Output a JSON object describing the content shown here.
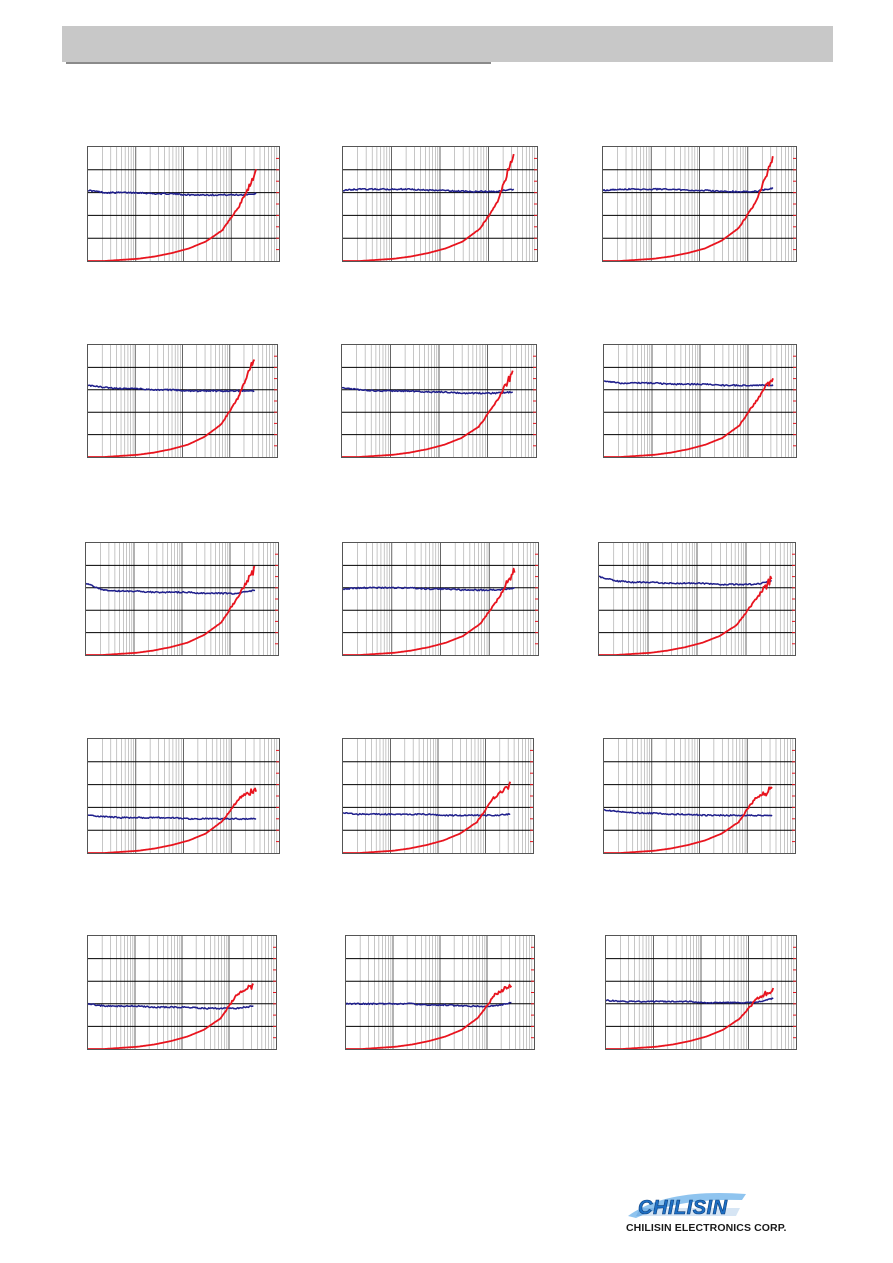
{
  "company": {
    "logo_text": "CHILISIN",
    "caption": "CHILISIN ELECTRONICS CORP."
  },
  "colors": {
    "header": "#c8c8c8",
    "series_a": "#1f1f8c",
    "series_b": "#e8141e",
    "grid": "#000000",
    "logo_blue": "#1e6fc4"
  },
  "chart_data": [
    {
      "type": "line",
      "xscale": "log",
      "grid": "log-vertical, 4 horizontal",
      "series": [
        {
          "y": [
            0.62,
            0.6,
            0.6,
            0.6,
            0.59,
            0.59,
            0.58,
            0.58,
            0.58,
            0.58,
            0.59
          ]
        },
        {
          "y": [
            0.0,
            0.0,
            0.01,
            0.02,
            0.04,
            0.07,
            0.11,
            0.17,
            0.27,
            0.48,
            0.78
          ]
        }
      ]
    },
    {
      "type": "line",
      "xscale": "log",
      "grid": "log-vertical, 4 horizontal",
      "series": [
        {
          "y": [
            0.62,
            0.63,
            0.63,
            0.63,
            0.63,
            0.62,
            0.62,
            0.61,
            0.61,
            0.61,
            0.63
          ]
        },
        {
          "y": [
            0.0,
            0.0,
            0.01,
            0.02,
            0.04,
            0.07,
            0.11,
            0.17,
            0.28,
            0.5,
            0.94
          ]
        }
      ]
    },
    {
      "type": "line",
      "xscale": "log",
      "grid": "log-vertical, 4 horizontal",
      "series": [
        {
          "y": [
            0.62,
            0.63,
            0.63,
            0.63,
            0.63,
            0.62,
            0.62,
            0.61,
            0.61,
            0.61,
            0.64
          ]
        },
        {
          "y": [
            0.0,
            0.0,
            0.01,
            0.02,
            0.04,
            0.07,
            0.11,
            0.18,
            0.29,
            0.52,
            0.9
          ]
        }
      ]
    },
    {
      "type": "line",
      "xscale": "log",
      "grid": "log-vertical, 4 horizontal",
      "series": [
        {
          "y": [
            0.64,
            0.62,
            0.61,
            0.61,
            0.6,
            0.6,
            0.59,
            0.59,
            0.59,
            0.59,
            0.59
          ]
        },
        {
          "y": [
            0.0,
            0.0,
            0.01,
            0.02,
            0.04,
            0.07,
            0.11,
            0.18,
            0.29,
            0.52,
            0.88
          ]
        }
      ]
    },
    {
      "type": "line",
      "xscale": "log",
      "grid": "log-vertical, 4 horizontal",
      "series": [
        {
          "y": [
            0.62,
            0.6,
            0.59,
            0.59,
            0.59,
            0.58,
            0.58,
            0.57,
            0.57,
            0.57,
            0.58
          ]
        },
        {
          "y": [
            0.0,
            0.0,
            0.01,
            0.02,
            0.04,
            0.07,
            0.11,
            0.17,
            0.27,
            0.48,
            0.76
          ]
        }
      ]
    },
    {
      "type": "line",
      "xscale": "log",
      "grid": "log-vertical, 4 horizontal",
      "series": [
        {
          "y": [
            0.68,
            0.66,
            0.66,
            0.66,
            0.65,
            0.65,
            0.65,
            0.64,
            0.64,
            0.64,
            0.64
          ]
        },
        {
          "y": [
            0.0,
            0.0,
            0.01,
            0.02,
            0.04,
            0.07,
            0.11,
            0.17,
            0.28,
            0.5,
            0.72
          ]
        }
      ]
    },
    {
      "type": "line",
      "xscale": "log",
      "grid": "log-vertical, 4 horizontal",
      "series": [
        {
          "y": [
            0.64,
            0.58,
            0.57,
            0.57,
            0.56,
            0.56,
            0.56,
            0.55,
            0.55,
            0.55,
            0.58
          ]
        },
        {
          "y": [
            0.0,
            0.0,
            0.01,
            0.02,
            0.04,
            0.07,
            0.11,
            0.18,
            0.29,
            0.52,
            0.78
          ]
        }
      ]
    },
    {
      "type": "line",
      "xscale": "log",
      "grid": "log-vertical, 4 horizontal",
      "series": [
        {
          "y": [
            0.59,
            0.6,
            0.6,
            0.6,
            0.6,
            0.59,
            0.59,
            0.58,
            0.58,
            0.58,
            0.6
          ]
        },
        {
          "y": [
            0.0,
            0.0,
            0.01,
            0.02,
            0.04,
            0.07,
            0.11,
            0.17,
            0.28,
            0.49,
            0.76
          ]
        }
      ]
    },
    {
      "type": "line",
      "xscale": "log",
      "grid": "log-vertical, 4 horizontal",
      "series": [
        {
          "y": [
            0.7,
            0.66,
            0.65,
            0.65,
            0.64,
            0.64,
            0.64,
            0.63,
            0.63,
            0.63,
            0.66
          ]
        },
        {
          "y": [
            0.0,
            0.0,
            0.01,
            0.02,
            0.04,
            0.07,
            0.11,
            0.17,
            0.27,
            0.48,
            0.68
          ]
        }
      ]
    },
    {
      "type": "line",
      "xscale": "log",
      "grid": "log-vertical, 4 horizontal",
      "series": [
        {
          "y": [
            0.33,
            0.32,
            0.31,
            0.31,
            0.31,
            0.31,
            0.3,
            0.3,
            0.3,
            0.3,
            0.3
          ]
        },
        {
          "y": [
            0.0,
            0.0,
            0.01,
            0.02,
            0.04,
            0.07,
            0.11,
            0.17,
            0.28,
            0.48,
            0.57
          ]
        }
      ]
    },
    {
      "type": "line",
      "xscale": "log",
      "grid": "log-vertical, 4 horizontal",
      "series": [
        {
          "y": [
            0.35,
            0.34,
            0.34,
            0.34,
            0.34,
            0.34,
            0.33,
            0.33,
            0.33,
            0.33,
            0.34
          ]
        },
        {
          "y": [
            0.0,
            0.0,
            0.01,
            0.02,
            0.04,
            0.07,
            0.11,
            0.17,
            0.27,
            0.48,
            0.6
          ]
        }
      ]
    },
    {
      "type": "line",
      "xscale": "log",
      "grid": "log-vertical, 4 horizontal",
      "series": [
        {
          "y": [
            0.38,
            0.36,
            0.35,
            0.35,
            0.34,
            0.34,
            0.33,
            0.33,
            0.33,
            0.33,
            0.33
          ]
        },
        {
          "y": [
            0.0,
            0.0,
            0.01,
            0.02,
            0.04,
            0.07,
            0.11,
            0.17,
            0.27,
            0.48,
            0.57
          ]
        }
      ]
    },
    {
      "type": "line",
      "xscale": "log",
      "grid": "log-vertical, 4 horizontal",
      "series": [
        {
          "y": [
            0.4,
            0.38,
            0.38,
            0.38,
            0.37,
            0.37,
            0.37,
            0.36,
            0.36,
            0.36,
            0.38
          ]
        },
        {
          "y": [
            0.0,
            0.0,
            0.01,
            0.02,
            0.04,
            0.07,
            0.11,
            0.17,
            0.27,
            0.48,
            0.56
          ]
        }
      ]
    },
    {
      "type": "line",
      "xscale": "log",
      "grid": "log-vertical, 4 horizontal",
      "series": [
        {
          "y": [
            0.4,
            0.4,
            0.4,
            0.4,
            0.4,
            0.39,
            0.39,
            0.38,
            0.38,
            0.38,
            0.41
          ]
        },
        {
          "y": [
            0.0,
            0.0,
            0.01,
            0.02,
            0.04,
            0.07,
            0.11,
            0.17,
            0.28,
            0.48,
            0.57
          ]
        }
      ]
    },
    {
      "type": "line",
      "xscale": "log",
      "grid": "log-vertical, 4 horizontal",
      "series": [
        {
          "y": [
            0.43,
            0.42,
            0.42,
            0.42,
            0.42,
            0.42,
            0.41,
            0.41,
            0.41,
            0.41,
            0.45
          ]
        },
        {
          "y": [
            0.0,
            0.0,
            0.01,
            0.02,
            0.04,
            0.07,
            0.11,
            0.17,
            0.27,
            0.44,
            0.53
          ]
        }
      ]
    }
  ]
}
